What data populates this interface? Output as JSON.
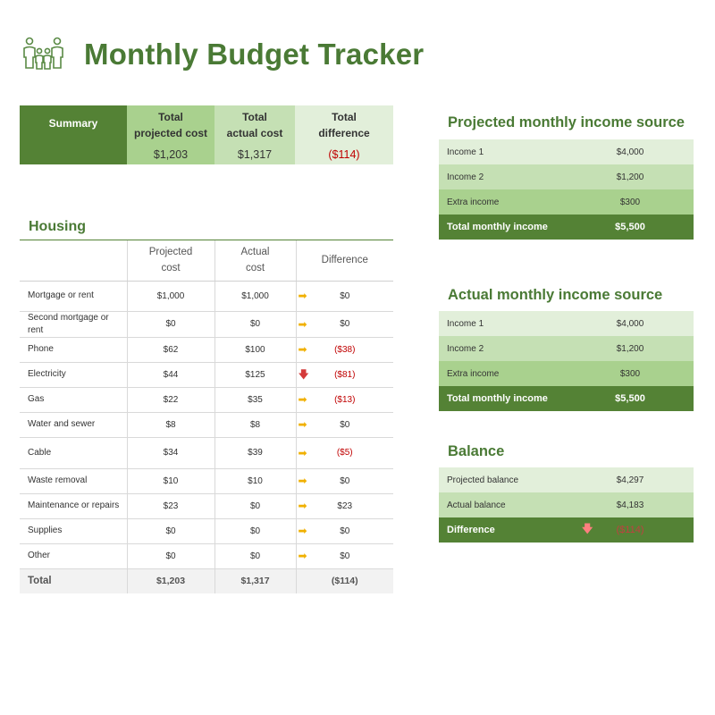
{
  "header": {
    "title": "Monthly Budget Tracker",
    "logo_icon": "family-icon",
    "accent_color": "#548235"
  },
  "summary": {
    "label": "Summary",
    "projected_header": [
      "Total",
      "projected cost"
    ],
    "actual_header": [
      "Total",
      "actual cost"
    ],
    "difference_header": [
      "Total",
      "difference"
    ],
    "projected_value": "$1,203",
    "actual_value": "$1,317",
    "difference_value": "($114)"
  },
  "housing": {
    "title": "Housing",
    "columns": {
      "projected": [
        "Projected",
        "cost"
      ],
      "actual": [
        "Actual",
        "cost"
      ],
      "difference": "Difference"
    },
    "rows": [
      {
        "category": "Mortgage or rent",
        "projected": "$1,000",
        "actual": "$1,000",
        "arrow": "right",
        "difference": "$0",
        "negative": false
      },
      {
        "category": "Second mortgage or rent",
        "projected": "$0",
        "actual": "$0",
        "arrow": "right",
        "difference": "$0",
        "negative": false
      },
      {
        "category": "Phone",
        "projected": "$62",
        "actual": "$100",
        "arrow": "right",
        "difference": "($38)",
        "negative": true
      },
      {
        "category": "Electricity",
        "projected": "$44",
        "actual": "$125",
        "arrow": "down",
        "difference": "($81)",
        "negative": true
      },
      {
        "category": "Gas",
        "projected": "$22",
        "actual": "$35",
        "arrow": "right",
        "difference": "($13)",
        "negative": true
      },
      {
        "category": "Water and sewer",
        "projected": "$8",
        "actual": "$8",
        "arrow": "right",
        "difference": "$0",
        "negative": false
      },
      {
        "category": "Cable",
        "projected": "$34",
        "actual": "$39",
        "arrow": "right",
        "difference": "($5)",
        "negative": true
      },
      {
        "category": "Waste removal",
        "projected": "$10",
        "actual": "$10",
        "arrow": "right",
        "difference": "$0",
        "negative": false
      },
      {
        "category": "Maintenance or repairs",
        "projected": "$23",
        "actual": "$0",
        "arrow": "right",
        "difference": "$23",
        "negative": false
      },
      {
        "category": "Supplies",
        "projected": "$0",
        "actual": "$0",
        "arrow": "right",
        "difference": "$0",
        "negative": false
      },
      {
        "category": "Other",
        "projected": "$0",
        "actual": "$0",
        "arrow": "right",
        "difference": "$0",
        "negative": false
      }
    ],
    "total": {
      "category": "Total",
      "projected": "$1,203",
      "actual": "$1,317",
      "difference": "($114)"
    }
  },
  "projected_income": {
    "title": "Projected monthly income source",
    "rows": [
      {
        "label": "Income 1",
        "amount": "$4,000"
      },
      {
        "label": "Income 2",
        "amount": "$1,200"
      },
      {
        "label": "Extra income",
        "amount": "$300"
      }
    ],
    "total_label": "Total monthly income",
    "total_amount": "$5,500"
  },
  "actual_income": {
    "title": "Actual monthly income source",
    "rows": [
      {
        "label": "Income 1",
        "amount": "$4,000"
      },
      {
        "label": "Income 2",
        "amount": "$1,200"
      },
      {
        "label": "Extra income",
        "amount": "$300"
      }
    ],
    "total_label": "Total monthly income",
    "total_amount": "$5,500"
  },
  "balance": {
    "title": "Balance",
    "projected_label": "Projected balance",
    "projected_amount": "$4,297",
    "actual_label": "Actual balance",
    "actual_amount": "$4,183",
    "difference_label": "Difference",
    "difference_arrow": "down",
    "difference_amount": "($114)"
  }
}
